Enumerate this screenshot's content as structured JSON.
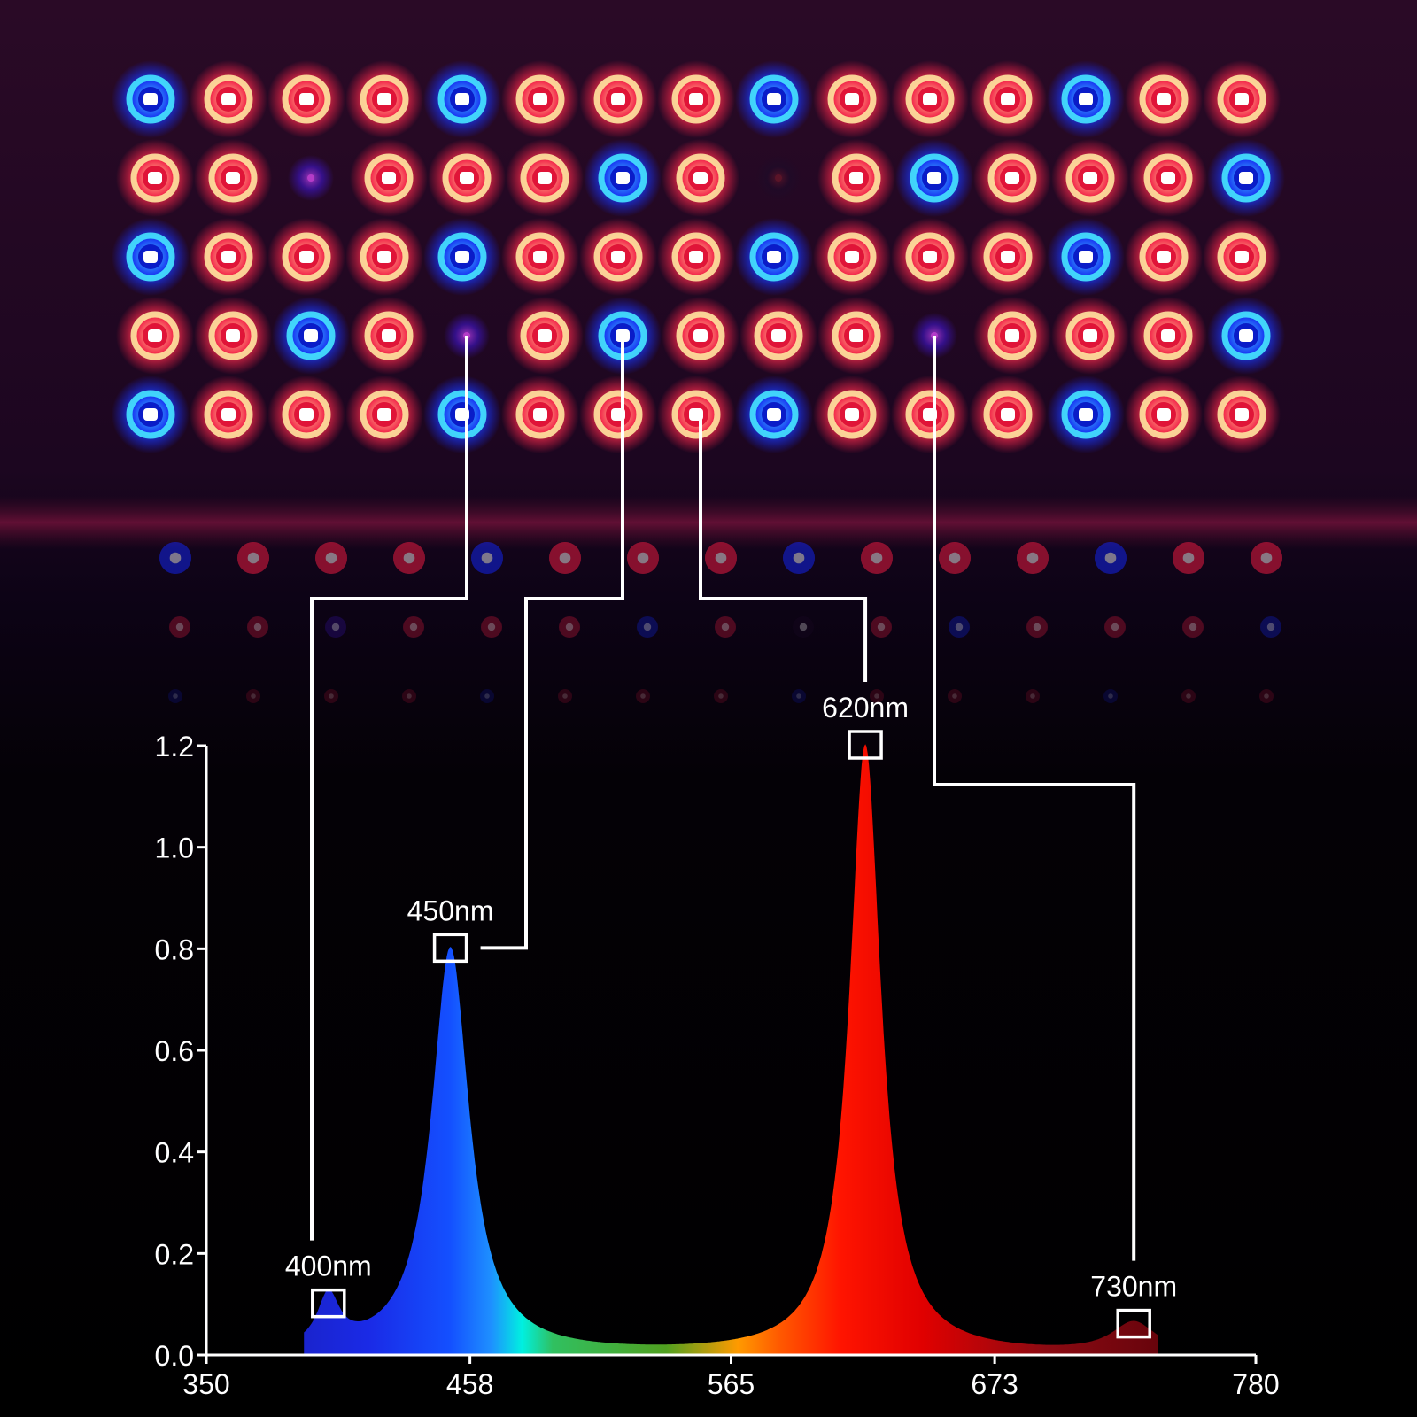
{
  "led_panel": {
    "rows": [
      [
        "blue",
        "red",
        "red",
        "red",
        "blue",
        "red",
        "red",
        "red",
        "blue",
        "red",
        "red",
        "red",
        "blue",
        "red",
        "red"
      ],
      [
        "red",
        "red",
        "uv",
        "red",
        "red",
        "red",
        "blue",
        "red",
        "ir",
        "red",
        "blue",
        "red",
        "red",
        "red",
        "blue"
      ],
      [
        "blue",
        "red",
        "red",
        "red",
        "blue",
        "red",
        "red",
        "red",
        "blue",
        "red",
        "red",
        "red",
        "blue",
        "red",
        "red"
      ],
      [
        "red",
        "red",
        "blue",
        "red",
        "uv",
        "red",
        "blue",
        "red",
        "red",
        "red",
        "uv",
        "red",
        "red",
        "red",
        "blue"
      ],
      [
        "blue",
        "red",
        "red",
        "red",
        "blue",
        "red",
        "red",
        "red",
        "blue",
        "red",
        "red",
        "red",
        "blue",
        "red",
        "red"
      ]
    ],
    "colors": {
      "blue": {
        "glow": "#1428ff",
        "ring": "#46e6ff"
      },
      "red": {
        "glow": "#ff1e46",
        "ring": "#ffe6a0"
      },
      "uv": {
        "glow": "#3c14b4",
        "ring": "#b43cc8"
      },
      "ir": {
        "glow": "#1e0a28",
        "ring": "#5a1428"
      }
    }
  },
  "chart_data": {
    "type": "area",
    "title": "",
    "xlabel": "",
    "ylabel": "",
    "xlim": [
      350,
      780
    ],
    "ylim": [
      0,
      1.2
    ],
    "x_ticks": [
      "350",
      "458",
      "565",
      "673",
      "780"
    ],
    "y_ticks": [
      "0.0",
      "0.2",
      "0.4",
      "0.6",
      "0.8",
      "1.0",
      "1.2"
    ],
    "grid": false,
    "peaks": [
      {
        "label": "400nm",
        "wavelength": 400,
        "intensity": 0.1,
        "width": 7,
        "color": "#2030e0"
      },
      {
        "label": "450nm",
        "wavelength": 450,
        "intensity": 0.8,
        "width": 12,
        "color": "#1c3cff"
      },
      {
        "label": "620nm",
        "wavelength": 620,
        "intensity": 1.2,
        "width": 10,
        "color": "#ff1a00"
      },
      {
        "label": "730nm",
        "wavelength": 730,
        "intensity": 0.06,
        "width": 14,
        "color": "#a00a14"
      }
    ]
  }
}
